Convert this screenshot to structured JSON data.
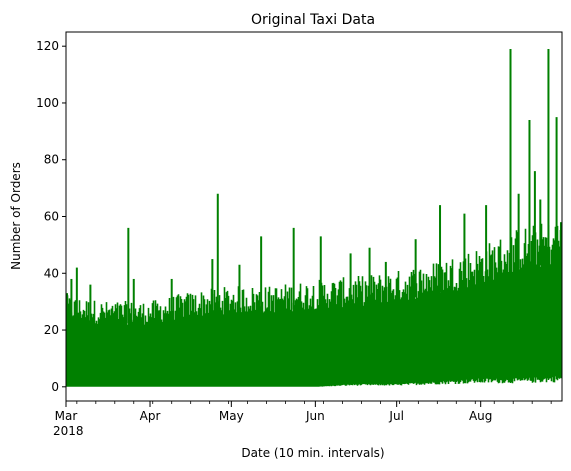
{
  "chart_data": {
    "type": "line",
    "title": "Original Taxi Data",
    "xlabel": "Date (10 min. intervals)",
    "ylabel": "Number of Orders",
    "ylim": [
      -5,
      125
    ],
    "xlim": [
      "2018-03-01",
      "2018-08-31"
    ],
    "grid": false,
    "line_color": "#008000",
    "y_ticks": [
      0,
      20,
      40,
      60,
      80,
      100,
      120
    ],
    "x_ticks": [
      {
        "date": "2018-03-01",
        "label": "Mar",
        "sublabel": "2018"
      },
      {
        "date": "2018-04-01",
        "label": "Apr",
        "sublabel": ""
      },
      {
        "date": "2018-05-01",
        "label": "May",
        "sublabel": ""
      },
      {
        "date": "2018-06-01",
        "label": "Jun",
        "sublabel": ""
      },
      {
        "date": "2018-07-01",
        "label": "Jul",
        "sublabel": ""
      },
      {
        "date": "2018-08-01",
        "label": "Aug",
        "sublabel": ""
      }
    ],
    "envelope": {
      "note_dates_and_range": "approximate low/high order counts per period",
      "dates": [
        "2018-03-01",
        "2018-03-15",
        "2018-04-01",
        "2018-04-15",
        "2018-05-01",
        "2018-05-15",
        "2018-06-01",
        "2018-06-15",
        "2018-07-01",
        "2018-07-15",
        "2018-08-01",
        "2018-08-15",
        "2018-08-31"
      ],
      "low": [
        0,
        0,
        0,
        0,
        0,
        0,
        0,
        1,
        1,
        2,
        3,
        3,
        4
      ],
      "high": [
        30,
        28,
        28,
        31,
        33,
        33,
        35,
        36,
        38,
        41,
        46,
        52,
        55
      ]
    },
    "peaks": [
      {
        "date": "2018-03-01",
        "value": 33
      },
      {
        "date": "2018-03-03",
        "value": 38
      },
      {
        "date": "2018-03-05",
        "value": 42
      },
      {
        "date": "2018-03-10",
        "value": 36
      },
      {
        "date": "2018-03-24",
        "value": 56
      },
      {
        "date": "2018-03-26",
        "value": 38
      },
      {
        "date": "2018-04-09",
        "value": 38
      },
      {
        "date": "2018-04-24",
        "value": 45
      },
      {
        "date": "2018-04-26",
        "value": 68
      },
      {
        "date": "2018-05-04",
        "value": 43
      },
      {
        "date": "2018-05-12",
        "value": 53
      },
      {
        "date": "2018-05-24",
        "value": 56
      },
      {
        "date": "2018-06-03",
        "value": 53
      },
      {
        "date": "2018-06-14",
        "value": 47
      },
      {
        "date": "2018-06-21",
        "value": 49
      },
      {
        "date": "2018-06-27",
        "value": 44
      },
      {
        "date": "2018-07-08",
        "value": 52
      },
      {
        "date": "2018-07-17",
        "value": 64
      },
      {
        "date": "2018-07-26",
        "value": 61
      },
      {
        "date": "2018-08-03",
        "value": 64
      },
      {
        "date": "2018-08-12",
        "value": 119
      },
      {
        "date": "2018-08-15",
        "value": 68
      },
      {
        "date": "2018-08-19",
        "value": 94
      },
      {
        "date": "2018-08-21",
        "value": 76
      },
      {
        "date": "2018-08-23",
        "value": 66
      },
      {
        "date": "2018-08-26",
        "value": 119
      },
      {
        "date": "2018-08-29",
        "value": 95
      },
      {
        "date": "2018-08-31",
        "value": 58
      }
    ]
  }
}
